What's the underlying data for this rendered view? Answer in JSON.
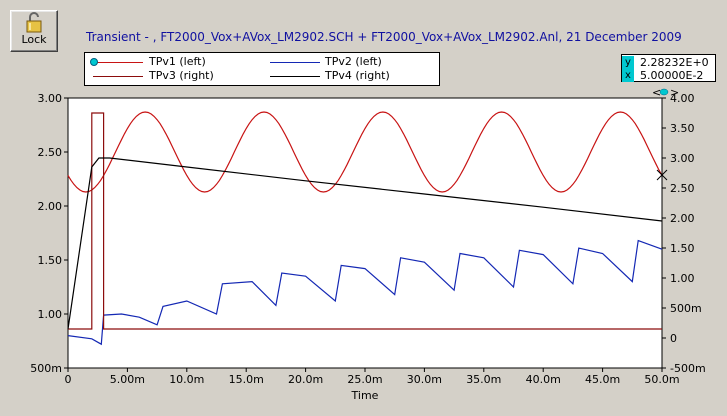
{
  "lock_button": {
    "label": "Lock",
    "icon": "padlock-icon"
  },
  "header": {
    "title": "Transient - ,    FT2000_Vox+AVox_LM2902.SCH + FT2000_Vox+AVox_LM2902.Anl,   21 December 2009"
  },
  "legend": {
    "items": [
      {
        "label": "TPv1 (left)",
        "color": "#c81414"
      },
      {
        "label": "TPv2 (left)",
        "color": "#1428b4"
      },
      {
        "label": "TPv3 (right)",
        "color": "#8c0c0c"
      },
      {
        "label": "TPv4 (right)",
        "color": "#000000"
      }
    ]
  },
  "cursor_readout": {
    "y_key": "y",
    "x_key": "x",
    "y_value": "2.28232E+0",
    "x_value": "5.00000E-2"
  },
  "colors": {
    "panel": "#d4d0c8",
    "plot_bg": "#ffffff",
    "axis": "#000000",
    "accent_cyan": "#00c8d0"
  },
  "chart_data": {
    "type": "line",
    "xlabel": "Time",
    "x_ticks": [
      "0",
      "5.00m",
      "10.0m",
      "15.0m",
      "20.0m",
      "25.0m",
      "30.0m",
      "35.0m",
      "40.0m",
      "45.0m",
      "50.0m"
    ],
    "left_ticks": [
      "3.00",
      "2.50",
      "2.00",
      "1.50",
      "1.00",
      "500m"
    ],
    "right_ticks": [
      "4.00",
      "3.50",
      "3.00",
      "2.50",
      "2.00",
      "1.50",
      "1.00",
      "500m",
      "0",
      "-500m"
    ],
    "xlim_ms": [
      0,
      50
    ],
    "ylim_left": [
      0.5,
      3.0
    ],
    "ylim_right": [
      -0.5,
      4.0
    ],
    "series": [
      {
        "name": "TPv1 (left)",
        "axis": "left",
        "color": "#c81414",
        "description": "sine ~2.5 V center, amplitude ~0.37 V, period ~10 ms",
        "x": [
          0,
          1.0,
          2.0,
          3.0,
          4.0,
          5.0,
          6.5,
          8.0,
          9.0,
          10.0,
          11.5,
          13.0,
          14.5,
          16.0,
          17.5,
          19.0,
          20.5,
          22.0,
          23.5,
          25.0,
          26.5,
          28.0,
          29.5,
          31.0,
          32.5,
          34.0,
          35.5,
          37.0,
          38.5,
          40.0,
          41.5,
          43.0,
          44.5,
          46.0,
          47.5,
          49.0,
          50.0
        ],
        "y": [
          2.5,
          2.32,
          2.25,
          2.33,
          2.55,
          2.75,
          2.87,
          2.72,
          2.4,
          2.17,
          2.13,
          2.45,
          2.8,
          2.86,
          2.6,
          2.25,
          2.13,
          2.32,
          2.7,
          2.88,
          2.75,
          2.35,
          2.13,
          2.2,
          2.55,
          2.86,
          2.8,
          2.45,
          2.15,
          2.15,
          2.45,
          2.82,
          2.86,
          2.65,
          2.3,
          2.2,
          2.28
        ]
      },
      {
        "name": "TPv2 (left)",
        "axis": "left",
        "color": "#1428b4",
        "description": "sawtooth charging waveform rising to ~1.6 V",
        "x": [
          0,
          2.0,
          2.8,
          3.0,
          4.5,
          6.0,
          7.5,
          8.0,
          10.0,
          12.5,
          13.0,
          15.5,
          17.5,
          18.0,
          20.0,
          22.5,
          23.0,
          25.0,
          27.5,
          28.0,
          30.0,
          32.5,
          33.0,
          35.0,
          37.5,
          38.0,
          40.0,
          42.5,
          43.0,
          45.0,
          47.5,
          48.0,
          50.0
        ],
        "y": [
          0.8,
          0.77,
          0.72,
          0.99,
          1.0,
          0.97,
          0.9,
          1.07,
          1.12,
          1.0,
          1.28,
          1.3,
          1.08,
          1.38,
          1.35,
          1.12,
          1.45,
          1.42,
          1.18,
          1.52,
          1.48,
          1.22,
          1.56,
          1.52,
          1.25,
          1.59,
          1.55,
          1.28,
          1.61,
          1.56,
          1.3,
          1.68,
          1.6
        ]
      },
      {
        "name": "TPv3 (right)",
        "axis": "right",
        "color": "#8c0c0c",
        "description": "pulse to ~3.75 V between 2 ms and 3 ms, otherwise ~0.15 V",
        "x": [
          0,
          2.0,
          2.0,
          3.0,
          3.0,
          50.0
        ],
        "y": [
          0.15,
          0.15,
          3.75,
          3.75,
          0.15,
          0.15
        ]
      },
      {
        "name": "TPv4 (right)",
        "axis": "right",
        "color": "#000000",
        "description": "jumps to ~3.0 V at ~2.5 ms then decays linearly to ~1.95 V",
        "x": [
          0,
          2.0,
          2.6,
          3.5,
          10.0,
          20.0,
          30.0,
          40.0,
          50.0
        ],
        "y": [
          0.15,
          2.85,
          3.0,
          3.0,
          2.85,
          2.62,
          2.4,
          2.18,
          1.95
        ]
      }
    ]
  }
}
